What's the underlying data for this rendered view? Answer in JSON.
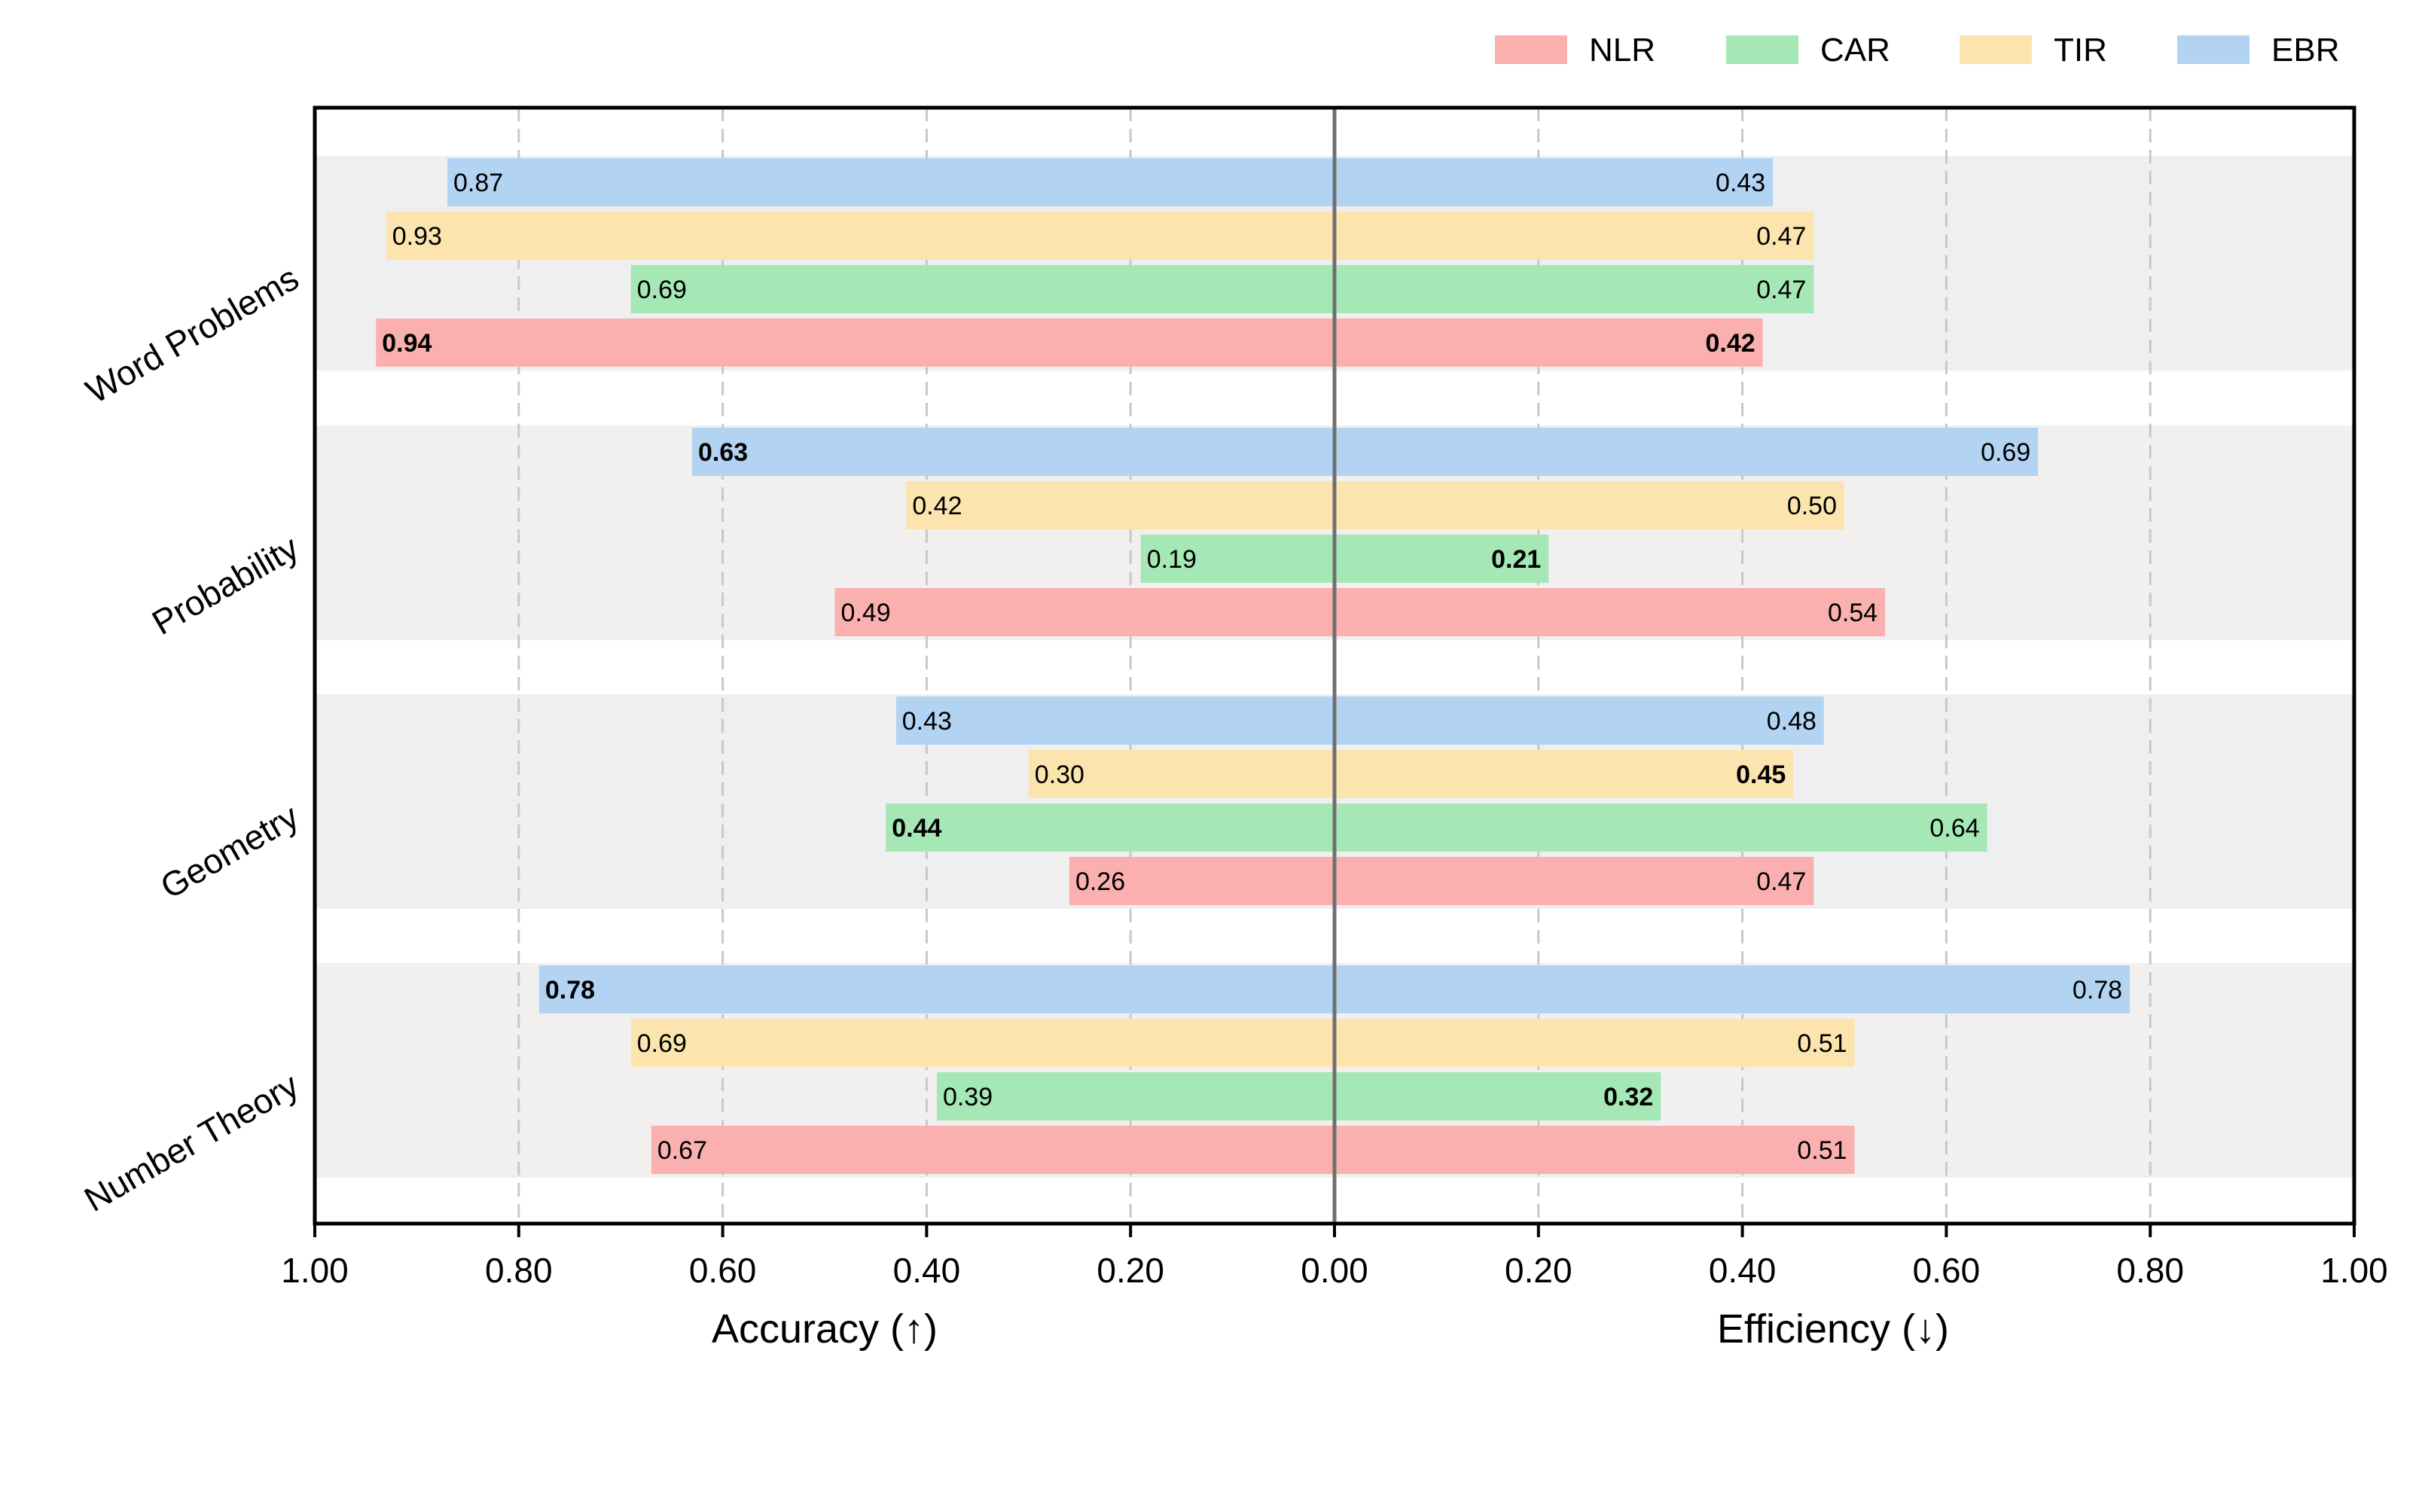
{
  "chart_data": {
    "type": "bar",
    "orientation": "horizontal-diverging",
    "categories": [
      "Word Problems",
      "Probability",
      "Geometry",
      "Number Theory"
    ],
    "series": [
      {
        "name": "NLR",
        "color": "#fbb0b0",
        "accuracy": [
          0.94,
          0.49,
          0.26,
          0.67
        ],
        "efficiency": [
          0.42,
          0.54,
          0.47,
          0.51
        ]
      },
      {
        "name": "CAR",
        "color": "#a5e7b5",
        "accuracy": [
          0.69,
          0.19,
          0.44,
          0.39
        ],
        "efficiency": [
          0.47,
          0.21,
          0.64,
          0.32
        ]
      },
      {
        "name": "TIR",
        "color": "#fbe4ae",
        "accuracy": [
          0.93,
          0.42,
          0.3,
          0.69
        ],
        "efficiency": [
          0.47,
          0.5,
          0.45,
          0.51
        ]
      },
      {
        "name": "EBR",
        "color": "#b3d3f2",
        "accuracy": [
          0.87,
          0.63,
          0.43,
          0.78
        ],
        "efficiency": [
          0.43,
          0.69,
          0.48,
          0.78
        ]
      }
    ],
    "bold_labels": {
      "accuracy": {
        "Word Problems": "NLR",
        "Probability": "EBR",
        "Geometry": "CAR",
        "Number Theory": "EBR"
      },
      "efficiency": {
        "Word Problems": "NLR",
        "Probability": "CAR",
        "Geometry": "TIR",
        "Number Theory": "CAR"
      }
    },
    "left_axis": {
      "label": "Accuracy (↑)",
      "range": [
        1.0,
        0.0
      ],
      "ticks": [
        "1.00",
        "0.80",
        "0.60",
        "0.40",
        "0.20",
        "0.00"
      ]
    },
    "right_axis": {
      "label": "Efficiency (↓)",
      "range": [
        0.0,
        1.0
      ],
      "ticks": [
        "0.20",
        "0.40",
        "0.60",
        "0.80",
        "1.00"
      ]
    },
    "grid": "vertical-dashed",
    "legend": {
      "placement": "top-right",
      "order": [
        "NLR",
        "CAR",
        "TIR",
        "EBR"
      ]
    },
    "group_band_colors": [
      "#efefef",
      "#f1f0ee",
      "#efefef",
      "#f1f0ee"
    ]
  }
}
